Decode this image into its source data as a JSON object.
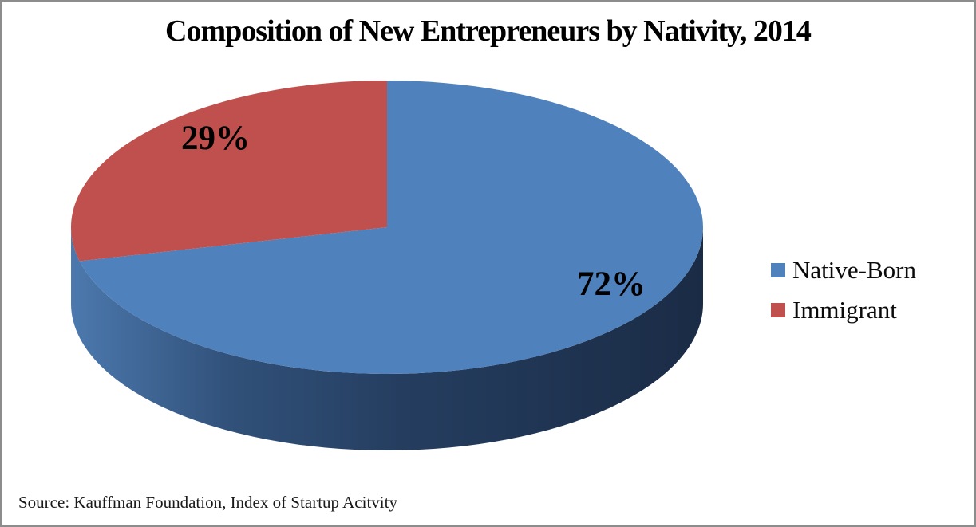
{
  "page": {
    "background": "#FFFFFF",
    "border_color": "#8C8C8C"
  },
  "chart_data": {
    "type": "pie",
    "style": "3d",
    "title": "Composition of New Entrepreneurs by Nativity, 2014",
    "categories": [
      "Native-Born",
      "Immigrant"
    ],
    "values": [
      72,
      29
    ],
    "percent_labels": [
      "72%",
      "29%"
    ],
    "colors": [
      "#4F81BD",
      "#C0504D"
    ],
    "side_gradient": [
      "#4C79AE",
      "#31517A",
      "#253E60",
      "#1A2B45"
    ],
    "start_angle": "top",
    "direction": "clockwise",
    "legend_position": "right",
    "source_note": "Source: Kauffman Foundation, Index of Startup Acitvity"
  }
}
